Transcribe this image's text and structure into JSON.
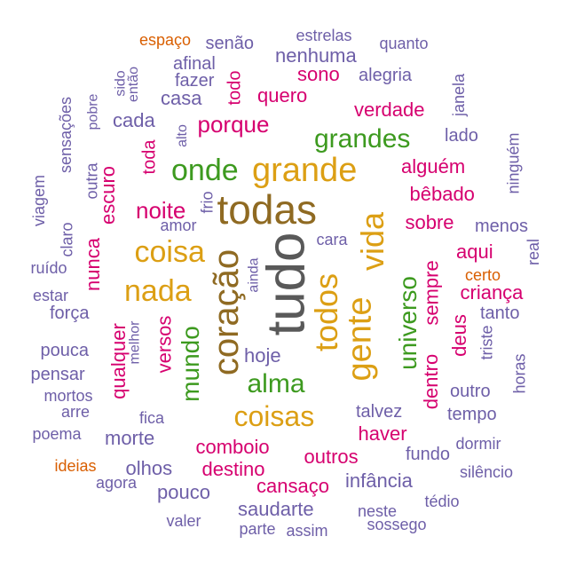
{
  "colors": {
    "purple": "#6e5fa8",
    "magenta": "#d6006f",
    "green": "#3d9a1f",
    "gold": "#dc9f14",
    "brown": "#8f6a22",
    "gray": "#595959",
    "orange": "#d95f02"
  },
  "words": [
    {
      "text": "tudo",
      "color": "gray"
    },
    {
      "text": "todas",
      "color": "brown"
    },
    {
      "text": "coração",
      "color": "brown"
    },
    {
      "text": "grande",
      "color": "gold"
    },
    {
      "text": "gente",
      "color": "gold"
    },
    {
      "text": "vida",
      "color": "gold"
    },
    {
      "text": "todos",
      "color": "gold"
    },
    {
      "text": "coisa",
      "color": "gold"
    },
    {
      "text": "nada",
      "color": "gold"
    },
    {
      "text": "coisas",
      "color": "gold"
    },
    {
      "text": "onde",
      "color": "green"
    },
    {
      "text": "grandes",
      "color": "green"
    },
    {
      "text": "alma",
      "color": "green"
    },
    {
      "text": "mundo",
      "color": "green"
    },
    {
      "text": "universo",
      "color": "green"
    },
    {
      "text": "noite",
      "color": "magenta"
    },
    {
      "text": "porque",
      "color": "magenta"
    },
    {
      "text": "quero",
      "color": "magenta"
    },
    {
      "text": "sono",
      "color": "magenta"
    },
    {
      "text": "verdade",
      "color": "magenta"
    },
    {
      "text": "alguém",
      "color": "magenta"
    },
    {
      "text": "bêbado",
      "color": "magenta"
    },
    {
      "text": "sobre",
      "color": "magenta"
    },
    {
      "text": "aqui",
      "color": "magenta"
    },
    {
      "text": "sempre",
      "color": "magenta"
    },
    {
      "text": "criança",
      "color": "magenta"
    },
    {
      "text": "deus",
      "color": "magenta"
    },
    {
      "text": "dentro",
      "color": "magenta"
    },
    {
      "text": "haver",
      "color": "magenta"
    },
    {
      "text": "comboio",
      "color": "magenta"
    },
    {
      "text": "destino",
      "color": "magenta"
    },
    {
      "text": "outros",
      "color": "magenta"
    },
    {
      "text": "cansaço",
      "color": "magenta"
    },
    {
      "text": "versos",
      "color": "magenta"
    },
    {
      "text": "qualquer",
      "color": "magenta"
    },
    {
      "text": "nunca",
      "color": "magenta"
    },
    {
      "text": "escuro",
      "color": "magenta"
    },
    {
      "text": "toda",
      "color": "magenta"
    },
    {
      "text": "todo",
      "color": "magenta"
    },
    {
      "text": "espaço",
      "color": "orange"
    },
    {
      "text": "certo",
      "color": "orange"
    },
    {
      "text": "ideias",
      "color": "orange"
    },
    {
      "text": "senão",
      "color": "purple"
    },
    {
      "text": "estrelas",
      "color": "purple"
    },
    {
      "text": "quanto",
      "color": "purple"
    },
    {
      "text": "nenhuma",
      "color": "purple"
    },
    {
      "text": "afinal",
      "color": "purple"
    },
    {
      "text": "alegria",
      "color": "purple"
    },
    {
      "text": "fazer",
      "color": "purple"
    },
    {
      "text": "casa",
      "color": "purple"
    },
    {
      "text": "cada",
      "color": "purple"
    },
    {
      "text": "sido",
      "color": "purple"
    },
    {
      "text": "então",
      "color": "purple"
    },
    {
      "text": "pobre",
      "color": "purple"
    },
    {
      "text": "sensações",
      "color": "purple"
    },
    {
      "text": "janela",
      "color": "purple"
    },
    {
      "text": "lado",
      "color": "purple"
    },
    {
      "text": "ninguém",
      "color": "purple"
    },
    {
      "text": "alto",
      "color": "purple"
    },
    {
      "text": "outra",
      "color": "purple"
    },
    {
      "text": "viagem",
      "color": "purple"
    },
    {
      "text": "frio",
      "color": "purple"
    },
    {
      "text": "amor",
      "color": "purple"
    },
    {
      "text": "claro",
      "color": "purple"
    },
    {
      "text": "menos",
      "color": "purple"
    },
    {
      "text": "real",
      "color": "purple"
    },
    {
      "text": "cara",
      "color": "purple"
    },
    {
      "text": "ainda",
      "color": "purple"
    },
    {
      "text": "ruído",
      "color": "purple"
    },
    {
      "text": "estar",
      "color": "purple"
    },
    {
      "text": "força",
      "color": "purple"
    },
    {
      "text": "tanto",
      "color": "purple"
    },
    {
      "text": "melhor",
      "color": "purple"
    },
    {
      "text": "triste",
      "color": "purple"
    },
    {
      "text": "pouca",
      "color": "purple"
    },
    {
      "text": "hoje",
      "color": "purple"
    },
    {
      "text": "pensar",
      "color": "purple"
    },
    {
      "text": "mortos",
      "color": "purple"
    },
    {
      "text": "horas",
      "color": "purple"
    },
    {
      "text": "outro",
      "color": "purple"
    },
    {
      "text": "arre",
      "color": "purple"
    },
    {
      "text": "fica",
      "color": "purple"
    },
    {
      "text": "talvez",
      "color": "purple"
    },
    {
      "text": "tempo",
      "color": "purple"
    },
    {
      "text": "poema",
      "color": "purple"
    },
    {
      "text": "morte",
      "color": "purple"
    },
    {
      "text": "dormir",
      "color": "purple"
    },
    {
      "text": "fundo",
      "color": "purple"
    },
    {
      "text": "olhos",
      "color": "purple"
    },
    {
      "text": "silêncio",
      "color": "purple"
    },
    {
      "text": "agora",
      "color": "purple"
    },
    {
      "text": "infância",
      "color": "purple"
    },
    {
      "text": "pouco",
      "color": "purple"
    },
    {
      "text": "tédio",
      "color": "purple"
    },
    {
      "text": "saudarte",
      "color": "purple"
    },
    {
      "text": "neste",
      "color": "purple"
    },
    {
      "text": "valer",
      "color": "purple"
    },
    {
      "text": "parte",
      "color": "purple"
    },
    {
      "text": "assim",
      "color": "purple"
    },
    {
      "text": "sossego",
      "color": "purple"
    }
  ]
}
